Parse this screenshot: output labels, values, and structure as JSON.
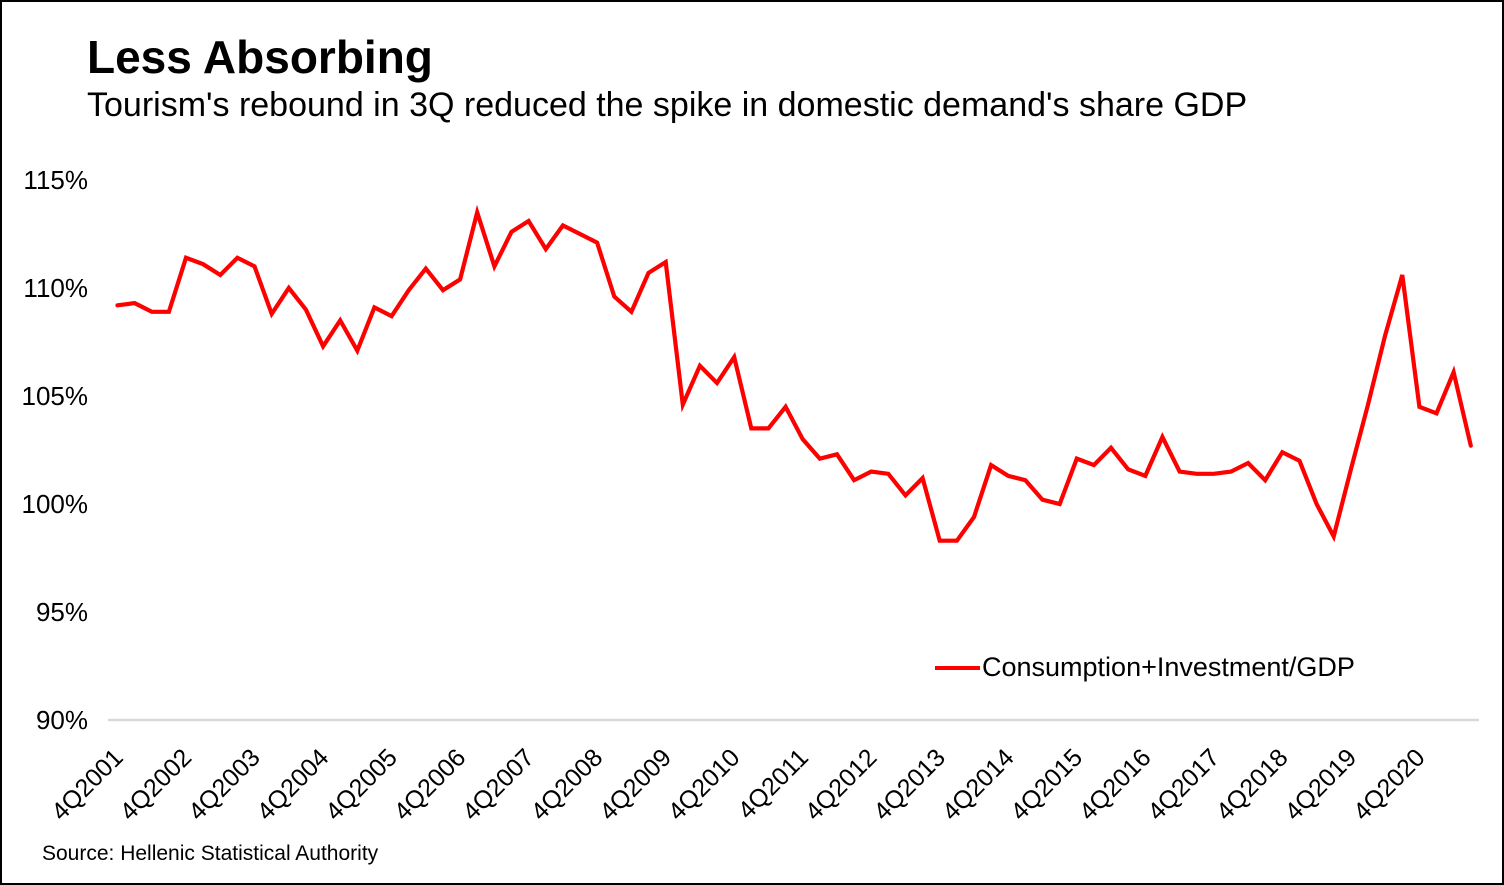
{
  "chart_data": {
    "type": "line",
    "title": "Less Absorbing",
    "subtitle": "Tourism's rebound in 3Q reduced the spike in domestic demand's share GDP",
    "source": "Source: Hellenic Statistical Authority",
    "grid": false,
    "legend_position": "inside-bottom-right",
    "ylim": [
      90,
      115
    ],
    "y_ticks": [
      115,
      110,
      105,
      100,
      95,
      90
    ],
    "y_tick_suffix": "%",
    "x_tick_labels": [
      "4Q2001",
      "4Q2002",
      "4Q2003",
      "4Q2004",
      "4Q2005",
      "4Q2006",
      "4Q2007",
      "4Q2008",
      "4Q2009",
      "4Q2010",
      "4Q2011",
      "4Q2012",
      "4Q2013",
      "4Q2014",
      "4Q2015",
      "4Q2016",
      "4Q2017",
      "4Q2018",
      "4Q2019",
      "4Q2020"
    ],
    "axis_line_color": "#d9d9d9",
    "x": [
      "4Q2001",
      "1Q2002",
      "2Q2002",
      "3Q2002",
      "4Q2002",
      "1Q2003",
      "2Q2003",
      "3Q2003",
      "4Q2003",
      "1Q2004",
      "2Q2004",
      "3Q2004",
      "4Q2004",
      "1Q2005",
      "2Q2005",
      "3Q2005",
      "4Q2005",
      "1Q2006",
      "2Q2006",
      "3Q2006",
      "4Q2006",
      "1Q2007",
      "2Q2007",
      "3Q2007",
      "4Q2007",
      "1Q2008",
      "2Q2008",
      "3Q2008",
      "4Q2008",
      "1Q2009",
      "2Q2009",
      "3Q2009",
      "4Q2009",
      "1Q2010",
      "2Q2010",
      "3Q2010",
      "4Q2010",
      "1Q2011",
      "2Q2011",
      "3Q2011",
      "4Q2011",
      "1Q2012",
      "2Q2012",
      "3Q2012",
      "4Q2012",
      "1Q2013",
      "2Q2013",
      "3Q2013",
      "4Q2013",
      "1Q2014",
      "2Q2014",
      "3Q2014",
      "4Q2014",
      "1Q2015",
      "2Q2015",
      "3Q2015",
      "4Q2015",
      "1Q2016",
      "2Q2016",
      "3Q2016",
      "4Q2016",
      "1Q2017",
      "2Q2017",
      "3Q2017",
      "4Q2017",
      "1Q2018",
      "2Q2018",
      "3Q2018",
      "4Q2018",
      "1Q2019",
      "2Q2019",
      "3Q2019",
      "4Q2019",
      "1Q2020",
      "2Q2020",
      "3Q2020",
      "4Q2020",
      "1Q2021",
      "2Q2021",
      "3Q2021"
    ],
    "series": [
      {
        "name": "Consumption+Investment/GDP",
        "color": "#ff0000",
        "values": [
          109.2,
          109.3,
          108.9,
          108.9,
          111.4,
          111.1,
          110.6,
          111.4,
          111.0,
          108.8,
          110.0,
          109.0,
          107.3,
          108.5,
          107.1,
          109.1,
          108.7,
          109.9,
          110.9,
          109.9,
          110.4,
          113.5,
          111.0,
          112.6,
          113.1,
          111.8,
          112.9,
          112.5,
          112.1,
          109.6,
          108.9,
          110.7,
          111.2,
          104.6,
          106.4,
          105.6,
          106.8,
          103.5,
          103.5,
          104.5,
          103.0,
          102.1,
          102.3,
          101.1,
          101.5,
          101.4,
          100.4,
          101.2,
          98.3,
          98.3,
          99.4,
          101.8,
          101.3,
          101.1,
          100.2,
          100.0,
          102.1,
          101.8,
          102.6,
          101.6,
          101.3,
          103.1,
          101.5,
          101.4,
          101.4,
          101.5,
          101.9,
          101.1,
          102.4,
          102.0,
          100.0,
          98.5,
          101.6,
          104.6,
          107.8,
          110.6,
          104.5,
          104.2,
          106.1,
          102.7
        ]
      }
    ]
  }
}
